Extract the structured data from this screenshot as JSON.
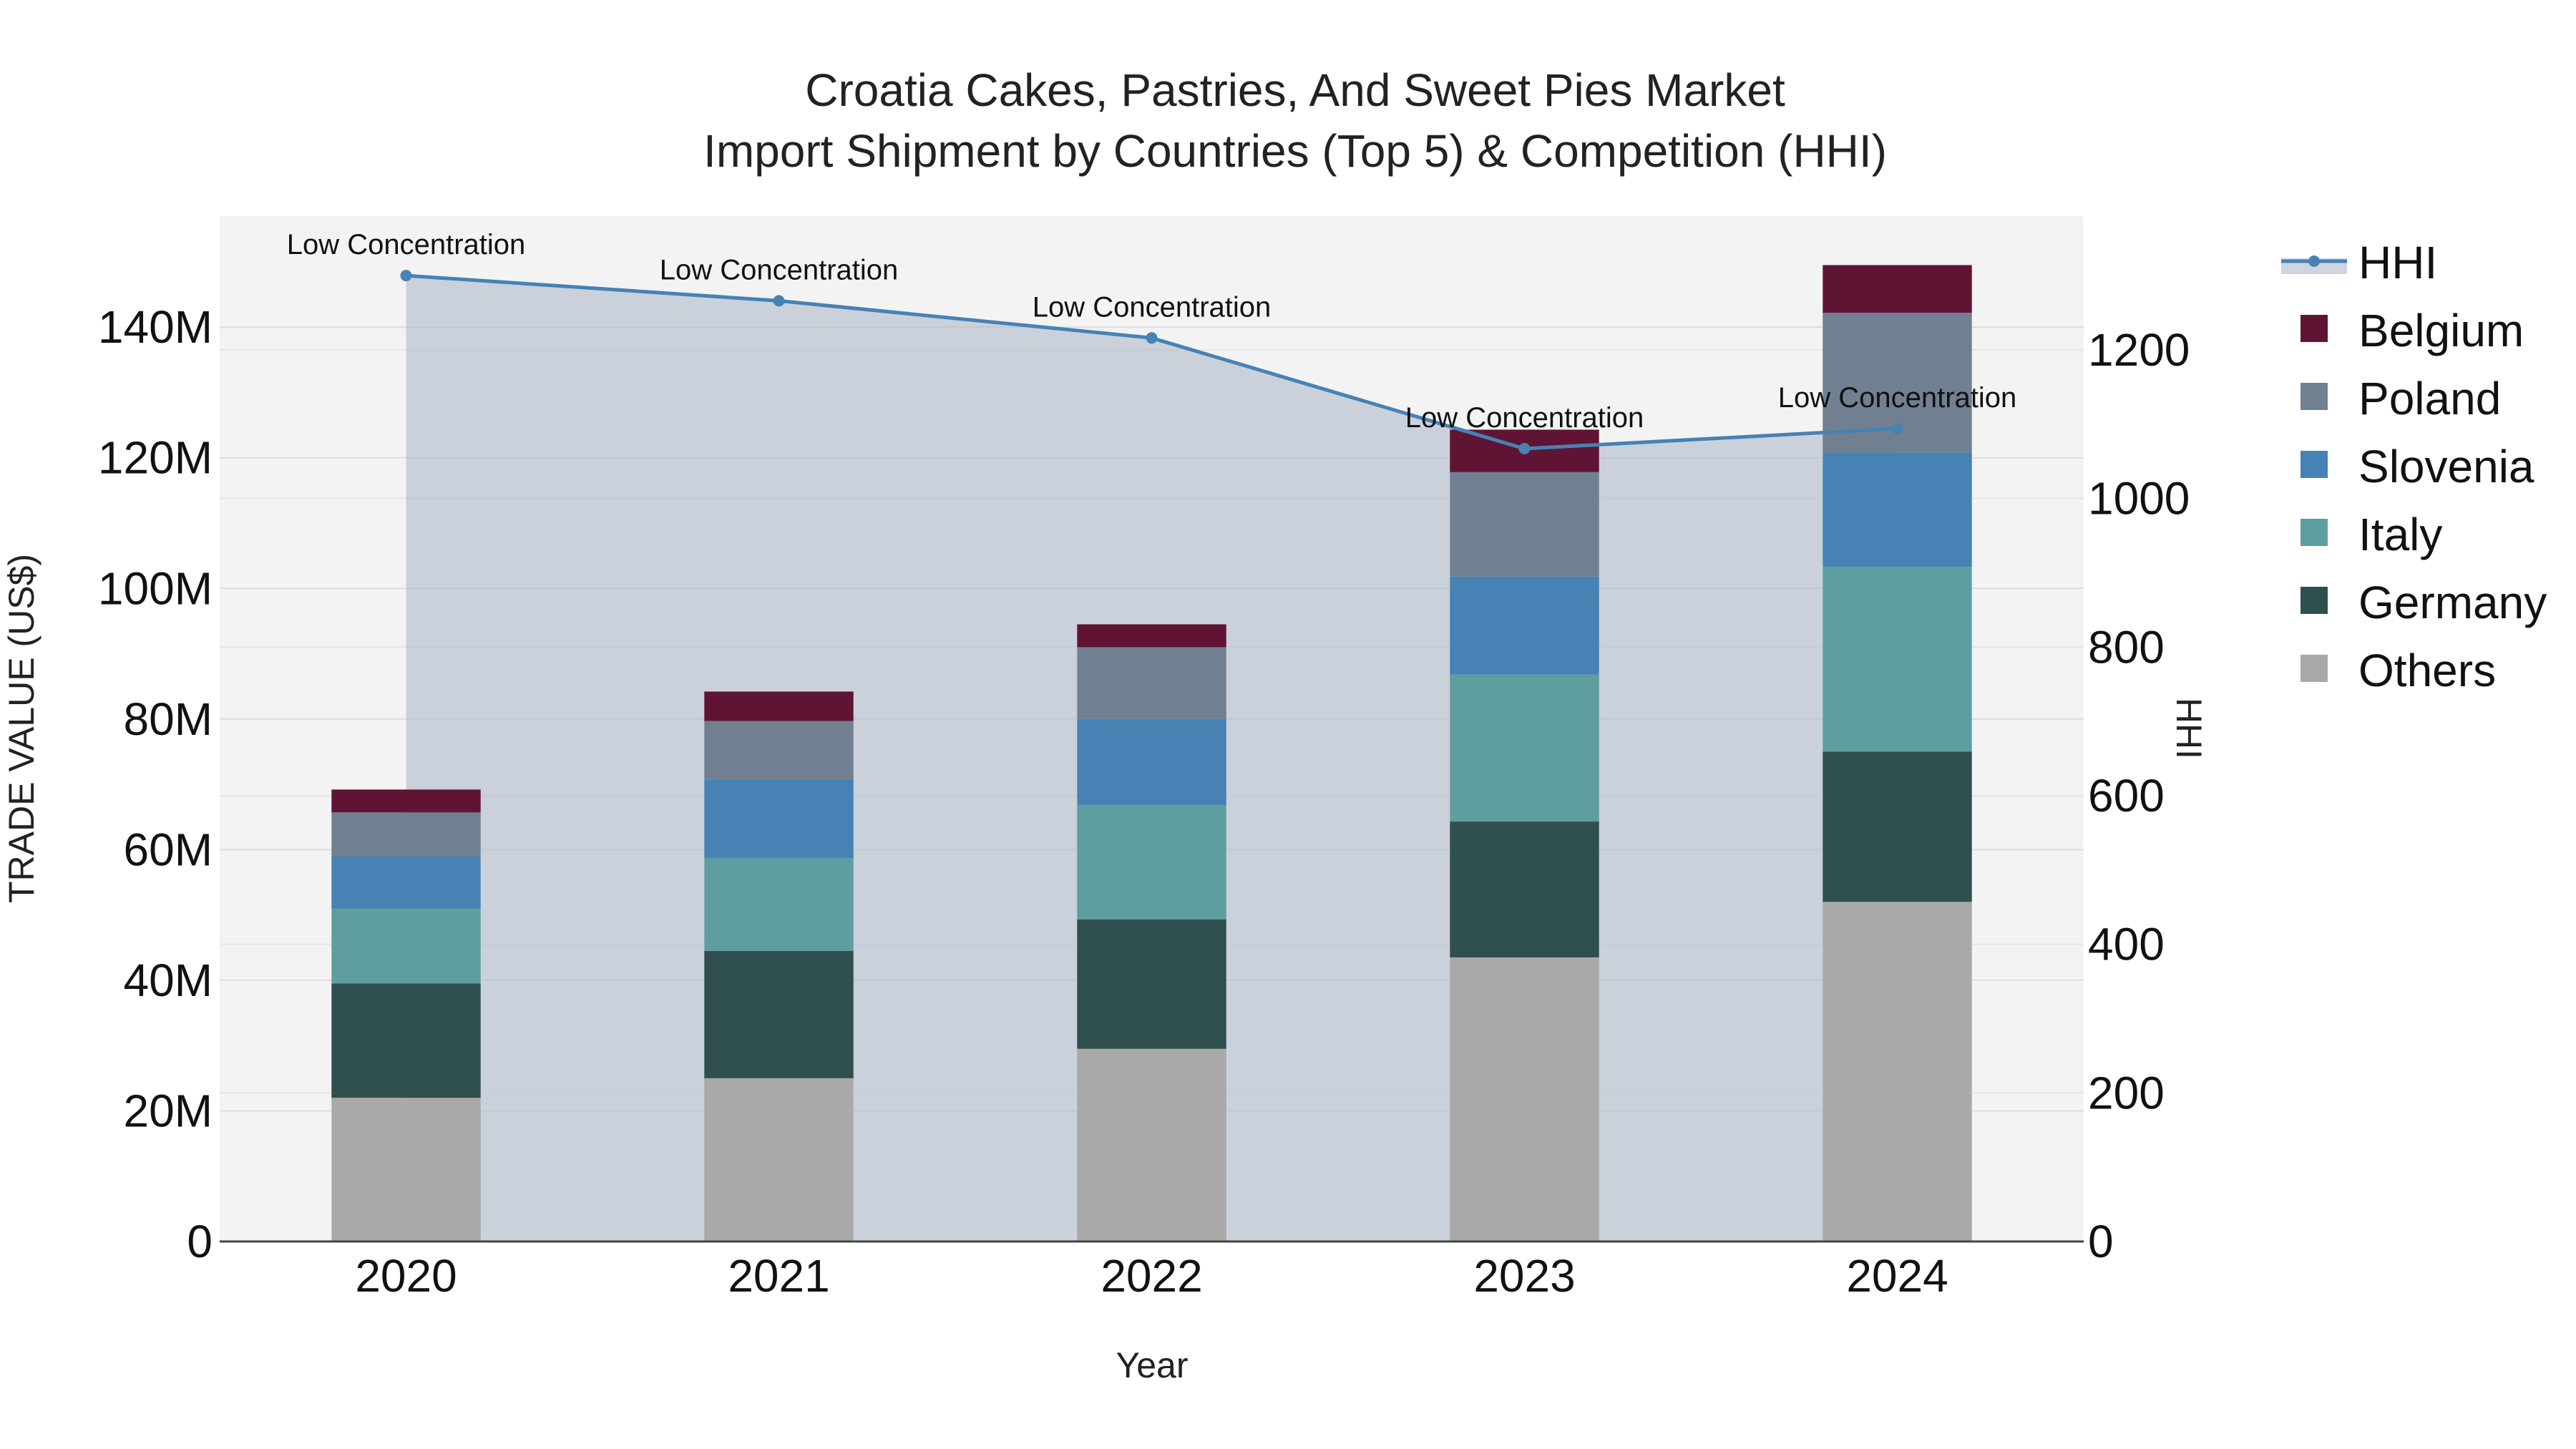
{
  "chart_data": {
    "type": "bar",
    "title_line1": "Croatia Cakes, Pastries, And Sweet Pies Market",
    "title_line2": "Import Shipment by Countries (Top 5) & Competition (HHI)",
    "xlabel": "Year",
    "ylabel": "TRADE VALUE (US$)",
    "y2label": "HHI",
    "categories": [
      "2020",
      "2021",
      "2022",
      "2023",
      "2024"
    ],
    "ylim": [
      0,
      157
    ],
    "y_unit_suffix": "M",
    "y_ticks": [
      0,
      20,
      40,
      60,
      80,
      100,
      120,
      140
    ],
    "y_tick_labels": [
      "0",
      "20M",
      "40M",
      "60M",
      "80M",
      "100M",
      "120M",
      "140M"
    ],
    "y2lim": [
      0,
      1380
    ],
    "y2_ticks": [
      0,
      200,
      400,
      600,
      800,
      1000,
      1200
    ],
    "y2_tick_labels": [
      "0",
      "200",
      "400",
      "600",
      "800",
      "1000",
      "1200"
    ],
    "series": [
      {
        "name": "Others",
        "color": "#a9a9a9",
        "values": [
          22.0,
          25.0,
          29.5,
          43.5,
          52.0
        ]
      },
      {
        "name": "Germany",
        "color": "#2f4f4f",
        "values": [
          17.5,
          19.5,
          19.8,
          20.8,
          23.0
        ]
      },
      {
        "name": "Italy",
        "color": "#5f9ea0",
        "values": [
          11.5,
          14.2,
          17.5,
          22.5,
          28.3
        ]
      },
      {
        "name": "Slovenia",
        "color": "#4682b4",
        "values": [
          8.0,
          12.0,
          13.2,
          15.0,
          17.5
        ]
      },
      {
        "name": "Poland",
        "color": "#708090",
        "values": [
          6.7,
          9.0,
          11.0,
          16.0,
          21.4
        ]
      },
      {
        "name": "Belgium",
        "color": "#601434",
        "values": [
          3.5,
          4.5,
          3.5,
          6.5,
          7.3
        ]
      }
    ],
    "hhi": {
      "name": "HHI",
      "color": "#4682b4",
      "values": [
        1300,
        1266,
        1216,
        1067,
        1094
      ],
      "annotations": [
        "Low Concentration",
        "Low Concentration",
        "Low Concentration",
        "Low Concentration",
        "Low Concentration"
      ]
    },
    "legend": {
      "placement": "right",
      "items": [
        "HHI",
        "Belgium",
        "Poland",
        "Slovenia",
        "Italy",
        "Germany",
        "Others"
      ]
    }
  }
}
